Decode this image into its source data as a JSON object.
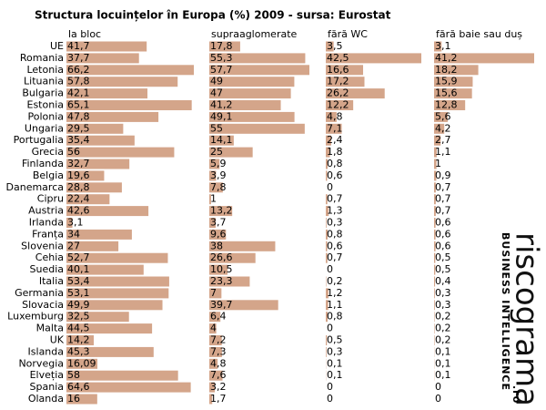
{
  "chart_data": {
    "type": "bar",
    "title": "Structura locuințelor în Europa (%) 2009  - sursa: Eurostat",
    "categories": [
      "UE",
      "Romania",
      "Letonia",
      "Lituania",
      "Bulgaria",
      "Estonia",
      "Polonia",
      "Ungaria",
      "Portugalia",
      "Grecia",
      "Finlanda",
      "Belgia",
      "Danemarca",
      "Cipru",
      "Austria",
      "Irlanda",
      "Franța",
      "Slovenia",
      "Cehia",
      "Suedia",
      "Italia",
      "Germania",
      "Slovacia",
      "Luxemburg",
      "Malta",
      "UK",
      "Islanda",
      "Norvegia",
      "Elveția",
      "Spania",
      "Olanda"
    ],
    "series": [
      {
        "name": "la bloc",
        "color": "#d4a58a",
        "values": [
          41.7,
          37.7,
          66.2,
          57.8,
          42.1,
          65.1,
          47.8,
          29.5,
          35.4,
          56,
          32.7,
          19.6,
          28.8,
          22.4,
          42.6,
          3.1,
          34,
          27,
          52.7,
          40.1,
          53.4,
          53.1,
          49.9,
          32.5,
          44.5,
          14.2,
          45.3,
          16.09,
          58,
          64.6,
          16
        ],
        "value_labels": [
          "41,7",
          "37,7",
          "66,2",
          "57,8",
          "42,1",
          "65,1",
          "47,8",
          "29,5",
          "35,4",
          "56",
          "32,7",
          "19,6",
          "28,8",
          "22,4",
          "42,6",
          "3,1",
          "34",
          "27",
          "52,7",
          "40,1",
          "53,4",
          "53,1",
          "49,9",
          "32,5",
          "44,5",
          "14,2",
          "45,3",
          "16,09",
          "58",
          "64,6",
          "16"
        ]
      },
      {
        "name": "supraaglomerate",
        "color": "#d4a58a",
        "values": [
          17.8,
          55.3,
          57.7,
          49,
          47,
          41.2,
          49.1,
          55,
          14.1,
          25,
          5.9,
          3.9,
          7.8,
          1,
          13.2,
          3.7,
          9.6,
          38,
          26.6,
          10.5,
          23.3,
          7,
          39.7,
          6.4,
          4,
          7.2,
          7.3,
          4.8,
          7.6,
          3.2,
          1.7
        ],
        "value_labels": [
          "17,8",
          "55,3",
          "57,7",
          "49",
          "47",
          "41,2",
          "49,1",
          "55",
          "14,1",
          "25",
          "5,9",
          "3,9",
          "7,8",
          "1",
          "13,2",
          "3,7",
          "9,6",
          "38",
          "26,6",
          "10,5",
          "23,3",
          "7",
          "39,7",
          "6,4",
          "4",
          "7,2",
          "7,3",
          "4,8",
          "7,6",
          "3,2",
          "1,7"
        ]
      },
      {
        "name": "fără WC",
        "color": "#d4a58a",
        "values": [
          3.5,
          42.5,
          16.6,
          17.2,
          26.2,
          12.2,
          4.8,
          7.1,
          2.4,
          1.8,
          0.8,
          0.6,
          0,
          0.7,
          1.3,
          0.3,
          0.8,
          0.6,
          0.7,
          0,
          0.2,
          1.2,
          1.1,
          0.8,
          0,
          0.5,
          0.3,
          0.1,
          0.1,
          0,
          0
        ],
        "value_labels": [
          "3,5",
          "42,5",
          "16,6",
          "17,2",
          "26,2",
          "12,2",
          "4,8",
          "7,1",
          "2,4",
          "1,8",
          "0,8",
          "0,6",
          "0",
          "0,7",
          "1,3",
          "0,3",
          "0,8",
          "0,6",
          "0,7",
          "0",
          "0,2",
          "1,2",
          "1,1",
          "0,8",
          "0",
          "0,5",
          "0,3",
          "0,1",
          "0,1",
          "0",
          "0"
        ]
      },
      {
        "name": "fără baie sau duș",
        "color": "#d4a58a",
        "values": [
          3.1,
          41.2,
          18.2,
          15.9,
          15.6,
          12.8,
          5.6,
          4.2,
          2.7,
          1.1,
          1,
          0.9,
          0.7,
          0.7,
          0.7,
          0.6,
          0.6,
          0.6,
          0.5,
          0.5,
          0.4,
          0.3,
          0.3,
          0.2,
          0.2,
          0.2,
          0.1,
          0.1,
          0.1,
          0,
          0
        ],
        "value_labels": [
          "3,1",
          "41,2",
          "18,2",
          "15,9",
          "15,6",
          "12,8",
          "5,6",
          "4,2",
          "2,7",
          "1,1",
          "1",
          "0,9",
          "0,7",
          "0,7",
          "0,7",
          "0,6",
          "0,6",
          "0,6",
          "0,5",
          "0,5",
          "0,4",
          "0,3",
          "0,3",
          "0,2",
          "0,2",
          "0,2",
          "0,1",
          "0,1",
          "0,1",
          "0",
          "0"
        ]
      }
    ],
    "logo": {
      "name": "riscograma",
      "tagline": "BUSINESS INTELLIGENCE",
      "domain": ".ro"
    }
  }
}
